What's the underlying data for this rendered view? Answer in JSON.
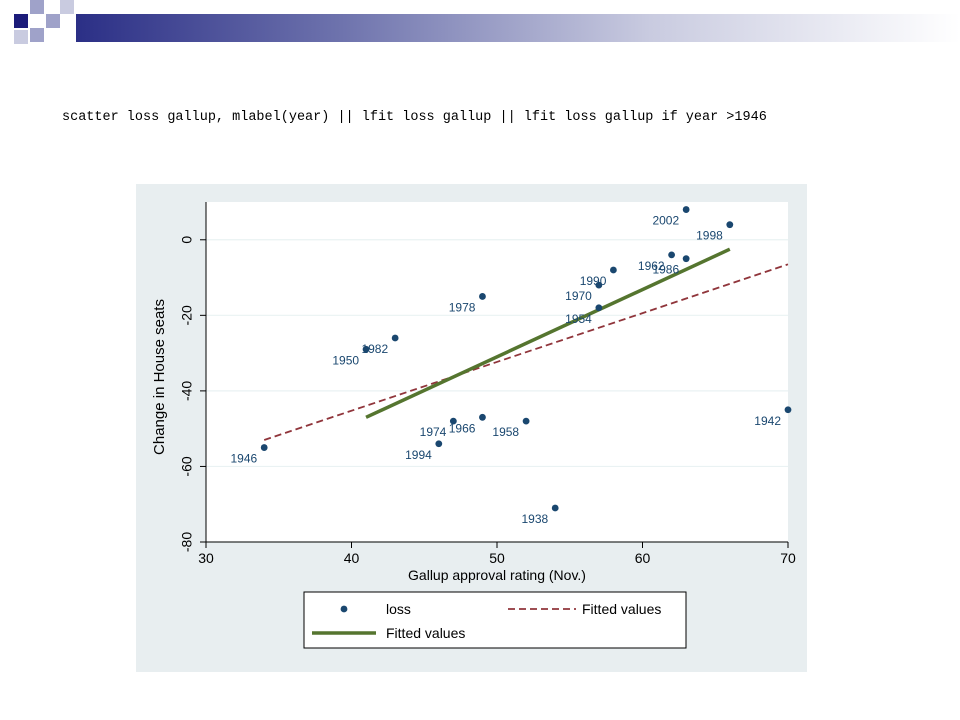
{
  "slide": {
    "command": "scatter loss gallup, mlabel(year) || lfit loss gallup || lfit loss gallup if year >1946",
    "accent_dark": "#1c1c7a",
    "accent_light": "#9fa2c9"
  },
  "chart_data": {
    "type": "scatter",
    "title": "",
    "xlabel": "Gallup approval rating (Nov.)",
    "ylabel": "Change in House seats",
    "xlim": [
      30,
      70
    ],
    "ylim": [
      -80,
      10
    ],
    "xticks": [
      30,
      40,
      50,
      60,
      70
    ],
    "yticks": [
      -80,
      -60,
      -40,
      -20,
      0
    ],
    "grid": "horizontal",
    "legend": "bottom",
    "background": "#e8eef0",
    "series": [
      {
        "name": "loss",
        "kind": "points",
        "color": "#1a476f",
        "points": [
          {
            "x": 34,
            "y": -55,
            "label": "1946"
          },
          {
            "x": 41,
            "y": -29,
            "label": "1950"
          },
          {
            "x": 43,
            "y": -26,
            "label": "1982"
          },
          {
            "x": 46,
            "y": -54,
            "label": "1994"
          },
          {
            "x": 47,
            "y": -48,
            "label": "1974"
          },
          {
            "x": 49,
            "y": -47,
            "label": "1966"
          },
          {
            "x": 49,
            "y": -15,
            "label": "1978"
          },
          {
            "x": 52,
            "y": -48,
            "label": "1958"
          },
          {
            "x": 54,
            "y": -71,
            "label": "1938"
          },
          {
            "x": 57,
            "y": -18,
            "label": "1954"
          },
          {
            "x": 57,
            "y": -12,
            "label": "1970"
          },
          {
            "x": 58,
            "y": -8,
            "label": "1990"
          },
          {
            "x": 62,
            "y": -4,
            "label": "1962"
          },
          {
            "x": 63,
            "y": -5,
            "label": "1986"
          },
          {
            "x": 63,
            "y": 8,
            "label": "2002"
          },
          {
            "x": 66,
            "y": 4,
            "label": "1998"
          },
          {
            "x": 70,
            "y": -45,
            "label": "1942"
          }
        ]
      },
      {
        "name": "Fitted values",
        "kind": "dashed-line",
        "color": "#90353b",
        "x": [
          34,
          70
        ],
        "y": [
          -53,
          -6.5
        ]
      },
      {
        "name": "Fitted values",
        "kind": "solid-line",
        "color": "#55752f",
        "x": [
          41,
          66
        ],
        "y": [
          -47,
          -2.5
        ]
      }
    ]
  }
}
